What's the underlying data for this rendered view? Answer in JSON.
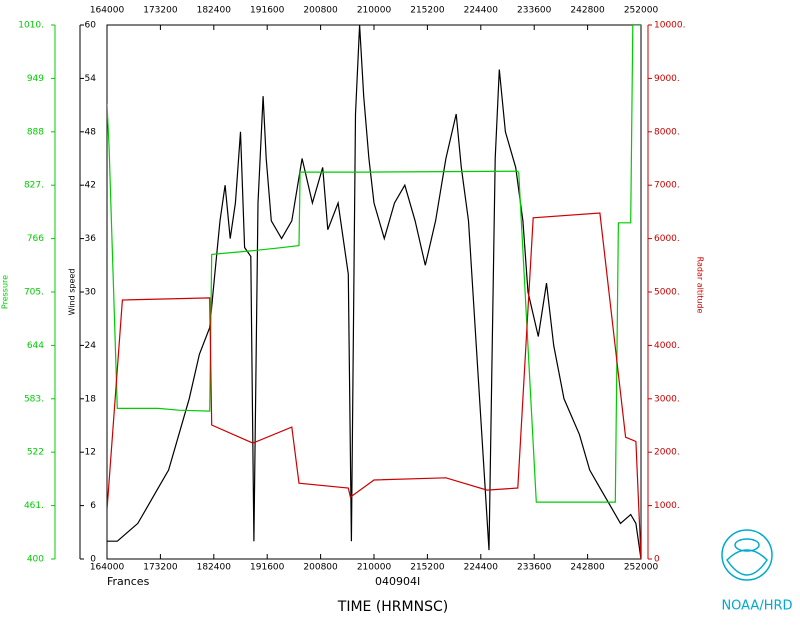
{
  "chart_data": {
    "type": "line",
    "storm": "Frances",
    "flight": "040904I",
    "xlabel": "TIME (HRMNSC)",
    "agency": "NOAA/HRD",
    "ylabel": "Wind speed",
    "y2label": "Pressure",
    "y3label": "Radar altitude",
    "xlim": [
      0,
      520
    ],
    "xticks": [
      {
        "value": 0,
        "label": "164000"
      },
      {
        "value": 52,
        "label": "173200"
      },
      {
        "value": 104,
        "label": "182400"
      },
      {
        "value": 156,
        "label": "191600"
      },
      {
        "value": 208,
        "label": "200800"
      },
      {
        "value": 260,
        "label": "210000"
      },
      {
        "value": 312,
        "label": "215200"
      },
      {
        "value": 364,
        "label": "224400"
      },
      {
        "value": 416,
        "label": "233600"
      },
      {
        "value": 468,
        "label": "242800"
      },
      {
        "value": 520,
        "label": "252000"
      }
    ],
    "ylim": [
      0,
      60
    ],
    "yticks": [
      0,
      6,
      12,
      18,
      24,
      30,
      36,
      42,
      48,
      54,
      60
    ],
    "y2lim": [
      400,
      1010
    ],
    "y2ticks": [
      400,
      {
        "value": 461,
        "label": "461."
      },
      522,
      {
        "value": 583,
        "label": "583."
      },
      644,
      {
        "value": 705,
        "label": "705."
      },
      766,
      {
        "value": 827,
        "label": "827."
      },
      888,
      949,
      {
        "value": 1010,
        "label": "1010."
      }
    ],
    "y3lim": [
      0,
      10000
    ],
    "y3ticks": [
      0,
      {
        "value": 1000,
        "label": "1000."
      },
      {
        "value": 2000,
        "label": "2000."
      },
      {
        "value": 3000,
        "label": "3000."
      },
      {
        "value": 4000,
        "label": "4000."
      },
      {
        "value": 5000,
        "label": "5000."
      },
      {
        "value": 6000,
        "label": "6000."
      },
      {
        "value": 7000,
        "label": "7000."
      },
      {
        "value": 8000,
        "label": "8000."
      },
      {
        "value": 9000,
        "label": "9000."
      },
      {
        "value": 10000,
        "label": "10000."
      }
    ],
    "series": [
      {
        "color": "#000000",
        "axis": "y",
        "x": [
          0,
          10,
          20,
          30,
          40,
          50,
          60,
          70,
          80,
          90,
          100,
          105,
          110,
          115,
          120,
          125,
          130,
          134,
          140,
          143,
          147,
          152,
          155,
          160,
          170,
          180,
          190,
          200,
          210,
          215,
          225,
          235,
          238,
          242,
          246,
          250,
          255,
          260,
          270,
          280,
          290,
          300,
          310,
          320,
          330,
          340,
          345,
          352,
          372,
          378,
          382,
          388,
          398,
          405,
          410,
          420,
          428,
          435,
          445,
          460,
          470,
          480,
          490,
          500,
          510,
          515,
          520
        ],
        "values": [
          2,
          2,
          3,
          4,
          6,
          8,
          10,
          14,
          18,
          23,
          26,
          32,
          38,
          42,
          36,
          40,
          48,
          35,
          34,
          2,
          40,
          52,
          45,
          38,
          36,
          38,
          45,
          40,
          44,
          37,
          40,
          32,
          2,
          50,
          60,
          52,
          45,
          40,
          36,
          40,
          42,
          38,
          33,
          38,
          45,
          50,
          44,
          38,
          1,
          45,
          55,
          48,
          44,
          38,
          30,
          25,
          31,
          24,
          18,
          14,
          10,
          8,
          6,
          4,
          5,
          4,
          0
        ]
      },
      {
        "color": "#00cc00",
        "axis": "y2",
        "x": [
          0,
          2,
          10,
          50,
          70,
          100,
          102,
          140,
          165,
          187,
          188,
          250,
          400,
          401,
          418,
          495,
          498,
          510,
          512,
          520
        ],
        "values": [
          920,
          870,
          572,
          572,
          570,
          569,
          748,
          752,
          755,
          758,
          842,
          842,
          843,
          840,
          465,
          465,
          784,
          784,
          1010,
          1010
        ]
      },
      {
        "color": "#cc0000",
        "axis": "y3",
        "x": [
          0,
          15,
          100,
          102,
          142,
          180,
          187,
          235,
          237,
          260,
          330,
          370,
          400,
          415,
          480,
          505,
          515,
          520
        ],
        "values": [
          920,
          4850,
          4890,
          2510,
          2170,
          2470,
          1420,
          1330,
          1160,
          1480,
          1520,
          1290,
          1330,
          6390,
          6480,
          2280,
          2200,
          0
        ]
      }
    ]
  }
}
